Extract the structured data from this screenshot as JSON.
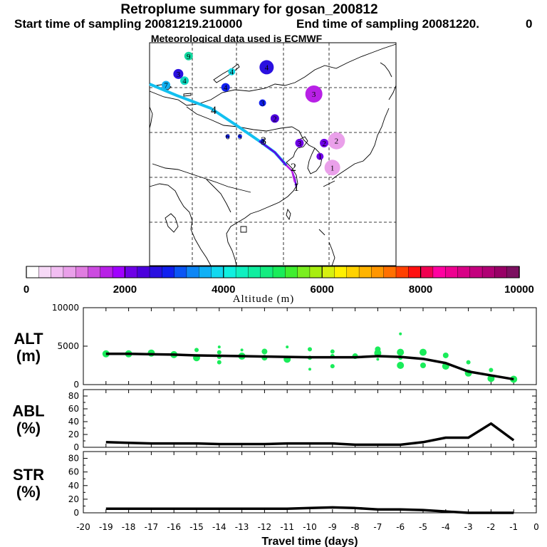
{
  "header": {
    "title": "Retroplume summary for gosan_200812",
    "start_label": "Start time of sampling 20081219.210000",
    "end_label": "End time of sampling 20081220.",
    "end_value": "0",
    "met_label": "Meteorological data used is ECMWF"
  },
  "colorbar": {
    "ticks": [
      "0",
      "2000",
      "4000",
      "6000",
      "8000",
      "10000"
    ],
    "title": "Altitude (m)",
    "colors": [
      "#ffffff",
      "#f7d9f7",
      "#f2bef2",
      "#eaa0ea",
      "#e07de0",
      "#cc4be0",
      "#b820e6",
      "#a000ff",
      "#6e00e6",
      "#4b00dc",
      "#2a10e0",
      "#1020f0",
      "#0a55f5",
      "#0d86f5",
      "#10b0f5",
      "#12d8f0",
      "#10f0e0",
      "#10f0c0",
      "#10eea0",
      "#14ec80",
      "#1aec5a",
      "#40ee30",
      "#7aee20",
      "#a8ee10",
      "#d6f010",
      "#fff000",
      "#ffd200",
      "#ffb400",
      "#ff9600",
      "#ff7000",
      "#ff4000",
      "#ff1010",
      "#f00050",
      "#ff00a0",
      "#ee0090",
      "#d80086",
      "#c4007e",
      "#b00074",
      "#980066",
      "#7c1060"
    ]
  },
  "chart_data": [
    {
      "type": "line",
      "panel": "ALT",
      "ylabel_line1": "ALT",
      "ylabel_line2": "(m)",
      "x": [
        -19,
        -18,
        -17,
        -16,
        -15,
        -14,
        -13,
        -12,
        -11,
        -10,
        -9,
        -8,
        -7,
        -6,
        -5,
        -4,
        -3,
        -2,
        -1
      ],
      "values": [
        4000,
        4000,
        3950,
        3900,
        3800,
        3750,
        3700,
        3650,
        3600,
        3550,
        3550,
        3550,
        3700,
        3600,
        3350,
        2800,
        1700,
        1200,
        700
      ],
      "ylim": [
        0,
        10000
      ],
      "yticks": [
        "0",
        "5000",
        "10000"
      ],
      "scatter": [
        {
          "x": -19,
          "y": 4000,
          "s": 5
        },
        {
          "x": -18,
          "y": 4000,
          "s": 5
        },
        {
          "x": -17,
          "y": 4100,
          "s": 5
        },
        {
          "x": -16,
          "y": 3900,
          "s": 5
        },
        {
          "x": -15,
          "y": 4500,
          "s": 3
        },
        {
          "x": -15,
          "y": 3500,
          "s": 5
        },
        {
          "x": -14,
          "y": 4900,
          "s": 2
        },
        {
          "x": -14,
          "y": 4200,
          "s": 3
        },
        {
          "x": -14,
          "y": 3600,
          "s": 3
        },
        {
          "x": -14,
          "y": 2900,
          "s": 3
        },
        {
          "x": -13,
          "y": 4500,
          "s": 2
        },
        {
          "x": -13,
          "y": 3700,
          "s": 5
        },
        {
          "x": -12,
          "y": 4300,
          "s": 4
        },
        {
          "x": -12,
          "y": 3500,
          "s": 4
        },
        {
          "x": -11,
          "y": 4900,
          "s": 2
        },
        {
          "x": -11,
          "y": 3300,
          "s": 5
        },
        {
          "x": -10,
          "y": 4600,
          "s": 3
        },
        {
          "x": -10,
          "y": 3500,
          "s": 3
        },
        {
          "x": -10,
          "y": 2000,
          "s": 2
        },
        {
          "x": -9,
          "y": 4300,
          "s": 3
        },
        {
          "x": -9,
          "y": 3700,
          "s": 3
        },
        {
          "x": -9,
          "y": 2400,
          "s": 3
        },
        {
          "x": -8,
          "y": 3700,
          "s": 4
        },
        {
          "x": -7,
          "y": 4600,
          "s": 4
        },
        {
          "x": -7,
          "y": 4100,
          "s": 5
        },
        {
          "x": -7,
          "y": 3300,
          "s": 2
        },
        {
          "x": -6,
          "y": 6600,
          "s": 2
        },
        {
          "x": -6,
          "y": 4200,
          "s": 5
        },
        {
          "x": -6,
          "y": 3500,
          "s": 3
        },
        {
          "x": -6,
          "y": 2500,
          "s": 5
        },
        {
          "x": -5,
          "y": 4200,
          "s": 5
        },
        {
          "x": -5,
          "y": 2500,
          "s": 4
        },
        {
          "x": -4,
          "y": 3800,
          "s": 4
        },
        {
          "x": -4,
          "y": 2400,
          "s": 5
        },
        {
          "x": -3,
          "y": 2900,
          "s": 3
        },
        {
          "x": -3,
          "y": 1500,
          "s": 5
        },
        {
          "x": -2,
          "y": 1900,
          "s": 3
        },
        {
          "x": -2,
          "y": 800,
          "s": 5
        },
        {
          "x": -1,
          "y": 700,
          "s": 5
        }
      ]
    },
    {
      "type": "line",
      "panel": "ABL",
      "ylabel_line1": "ABL",
      "ylabel_line2": "(%)",
      "x": [
        -19,
        -18,
        -17,
        -16,
        -15,
        -14,
        -13,
        -12,
        -11,
        -10,
        -9,
        -8,
        -7,
        -6,
        -5,
        -4,
        -3,
        -2,
        -1
      ],
      "values": [
        8,
        7,
        6,
        6,
        6,
        5,
        5,
        5,
        6,
        6,
        6,
        4,
        4,
        4,
        8,
        15,
        15,
        37,
        11
      ],
      "ylim": [
        0,
        90
      ],
      "yticks": [
        "0",
        "20",
        "40",
        "60",
        "80"
      ]
    },
    {
      "type": "line",
      "panel": "STR",
      "ylabel_line1": "STR",
      "ylabel_line2": "(%)",
      "x": [
        -19,
        -18,
        -17,
        -16,
        -15,
        -14,
        -13,
        -12,
        -11,
        -10,
        -9,
        -8,
        -7,
        -6,
        -5,
        -4,
        -3,
        -2,
        -1
      ],
      "values": [
        6,
        6,
        6,
        6,
        6,
        6,
        6,
        6,
        6,
        7,
        8,
        7,
        5,
        5,
        4,
        2,
        0,
        0,
        0
      ],
      "ylim": [
        0,
        90
      ],
      "yticks": [
        "0",
        "20",
        "40",
        "60",
        "80"
      ]
    }
  ],
  "xaxis": {
    "title": "Travel time (days)",
    "xlim": [
      -20,
      0
    ],
    "ticks": [
      "-20",
      "-19",
      "-18",
      "-17",
      "-16",
      "-15",
      "-14",
      "-13",
      "-12",
      "-11",
      "-10",
      "-9",
      "-8",
      "-7",
      "-6",
      "-5",
      "-4",
      "-3",
      "-2",
      "-1",
      "0"
    ]
  },
  "map": {
    "labels": [
      {
        "t": "9",
        "lon": 74.5,
        "lat": 52.0,
        "c": "#12d8a0",
        "r": 6
      },
      {
        "t": "4",
        "lon": 85.0,
        "lat": 48.5,
        "c": "#12d8e6",
        "r": 5
      },
      {
        "t": "4",
        "lon": 93.5,
        "lat": 49.5,
        "c": "#2a10e0",
        "r": 10
      },
      {
        "t": "3",
        "lon": 72.0,
        "lat": 48.0,
        "c": "#2a10e0",
        "r": 7
      },
      {
        "t": "4",
        "lon": 73.5,
        "lat": 46.5,
        "c": "#12d8c0",
        "r": 6
      },
      {
        "t": "7",
        "lon": 69.0,
        "lat": 45.5,
        "c": "#12b0f0",
        "r": 6
      },
      {
        "t": "4",
        "lon": 83.5,
        "lat": 45.0,
        "c": "#1020f0",
        "r": 6
      },
      {
        "t": "3",
        "lon": 92.5,
        "lat": 41.5,
        "c": "#1020f0",
        "r": 5
      },
      {
        "t": "3",
        "lon": 105.0,
        "lat": 43.5,
        "c": "#b820e6",
        "r": 12
      },
      {
        "t": "2",
        "lon": 95.5,
        "lat": 38.0,
        "c": "#4b00dc",
        "r": 6
      },
      {
        "t": "6",
        "lon": 84.0,
        "lat": 34.0,
        "c": "#1020f0",
        "r": 3
      },
      {
        "t": "5",
        "lon": 87.0,
        "lat": 34.0,
        "c": "#1020f0",
        "r": 3
      },
      {
        "t": "4",
        "lon": 92.5,
        "lat": 33.0,
        "c": "#1020f0",
        "r": 3
      },
      {
        "t": "3",
        "lon": 101.5,
        "lat": 32.5,
        "c": "#6e00e6",
        "r": 6
      },
      {
        "t": "2",
        "lon": 107.5,
        "lat": 32.5,
        "c": "#6e00e6",
        "r": 6
      },
      {
        "t": "2",
        "lon": 110.5,
        "lat": 33.0,
        "c": "#eaa0ea",
        "r": 12
      },
      {
        "t": "1",
        "lon": 106.5,
        "lat": 29.5,
        "c": "#6e00e6",
        "r": 5
      },
      {
        "t": "1",
        "lon": 109.5,
        "lat": 27.0,
        "c": "#eaa0ea",
        "r": 11
      }
    ]
  }
}
